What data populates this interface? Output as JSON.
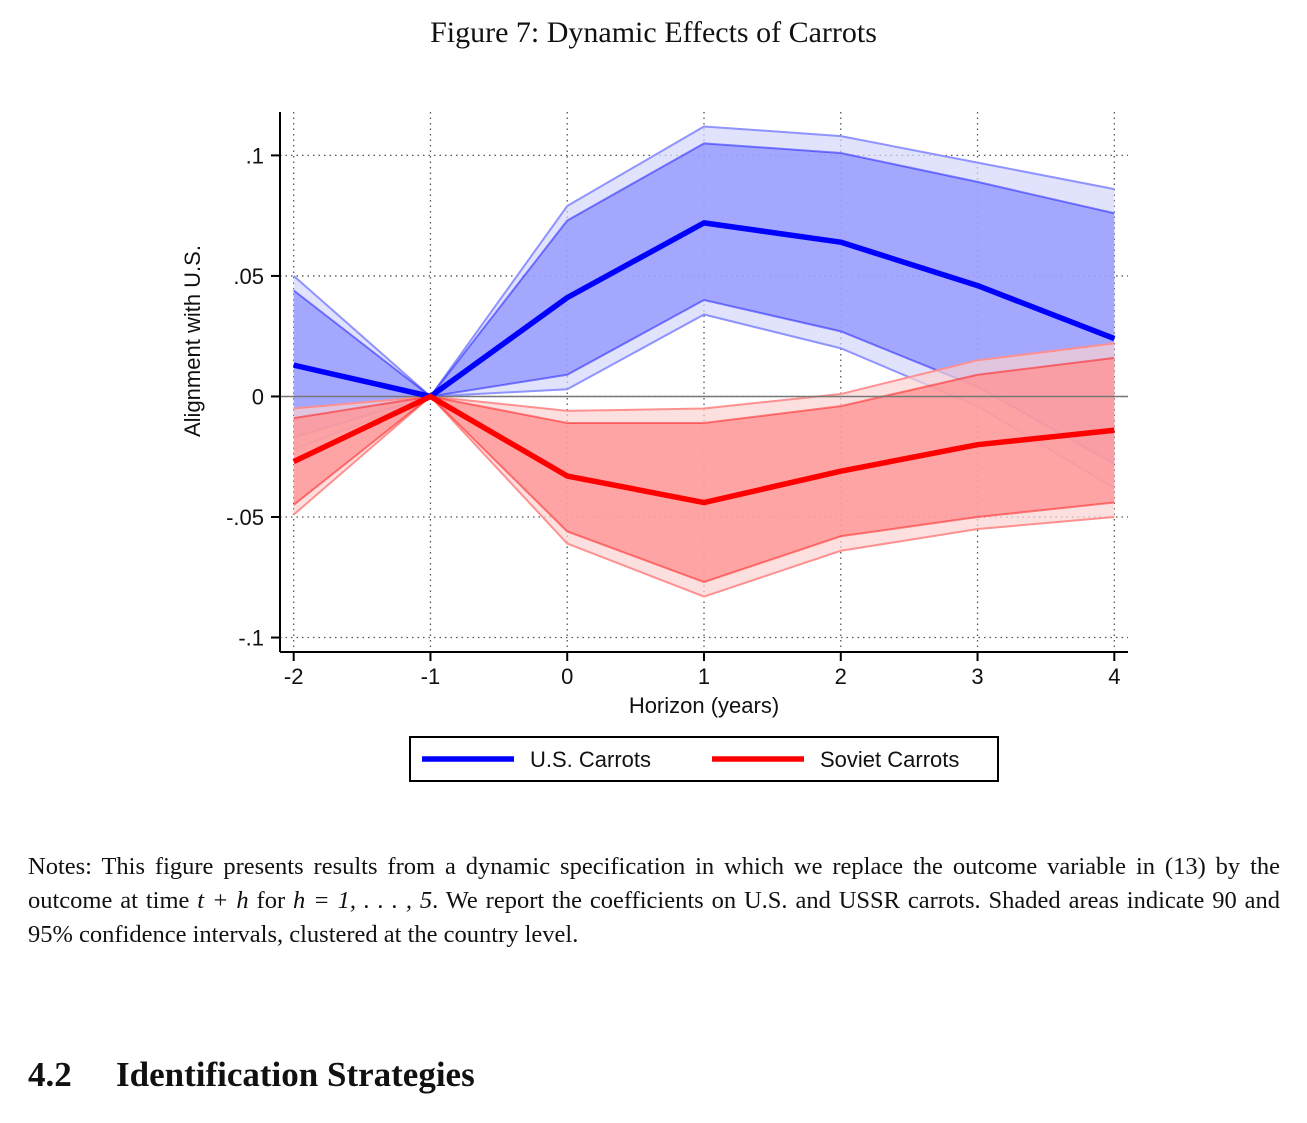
{
  "figure_title": "Figure 7: Dynamic Effects of Carrots",
  "chart_data": {
    "type": "line",
    "xlabel": "Horizon (years)",
    "ylabel": "Alignment with U.S.",
    "x": [
      -2,
      -1,
      0,
      1,
      2,
      3,
      4
    ],
    "xtick_labels": [
      "-2",
      "-1",
      "0",
      "1",
      "2",
      "3",
      "4"
    ],
    "yticks": [
      0.1,
      0.05,
      0,
      -0.05,
      -0.1
    ],
    "ytick_labels": [
      ".1",
      ".05",
      "0",
      "-.05",
      "-.1"
    ],
    "xlim": [
      -2.1,
      4.1
    ],
    "ylim": [
      -0.106,
      0.118
    ],
    "grid": true,
    "legend_position": "bottom",
    "series": [
      {
        "name": "U.S. Carrots",
        "color": "#0000ff",
        "band90_color": "#8f93ff",
        "band95_color": "#d4d6fb",
        "estimate": [
          0.013,
          0.0,
          0.041,
          0.072,
          0.064,
          0.046,
          0.024
        ],
        "ci90_low": [
          -0.017,
          0.0,
          0.009,
          0.04,
          0.027,
          0.004,
          -0.028
        ],
        "ci90_high": [
          0.044,
          0.0,
          0.073,
          0.105,
          0.101,
          0.089,
          0.076
        ],
        "ci95_low": [
          -0.022,
          0.0,
          0.003,
          0.034,
          0.02,
          -0.004,
          -0.038
        ],
        "ci95_high": [
          0.05,
          0.0,
          0.079,
          0.112,
          0.108,
          0.097,
          0.086
        ]
      },
      {
        "name": "Soviet Carrots",
        "color": "#ff0000",
        "band90_color": "#ff9090",
        "band95_color": "#fbd2d2",
        "estimate": [
          -0.027,
          0.0,
          -0.033,
          -0.044,
          -0.031,
          -0.02,
          -0.014
        ],
        "ci90_low": [
          -0.045,
          0.0,
          -0.056,
          -0.077,
          -0.058,
          -0.05,
          -0.044
        ],
        "ci90_high": [
          -0.009,
          0.0,
          -0.011,
          -0.011,
          -0.004,
          0.009,
          0.016
        ],
        "ci95_low": [
          -0.049,
          0.0,
          -0.061,
          -0.083,
          -0.064,
          -0.055,
          -0.05
        ],
        "ci95_high": [
          -0.005,
          0.0,
          -0.006,
          -0.005,
          0.001,
          0.015,
          0.022
        ]
      }
    ]
  },
  "notes": {
    "part1": "Notes: This figure presents results from a dynamic specification in which we replace the outcome variable in (13) by the outcome at time ",
    "math1": "t + h",
    "part2": " for ",
    "math2": "h = 1, . . . , 5",
    "part3": ". We report the coefficients on U.S. and USSR carrots. Shaded areas indicate 90 and 95% confidence intervals, clustered at the country level."
  },
  "section": {
    "number": "4.2",
    "title": "Identification Strategies"
  }
}
